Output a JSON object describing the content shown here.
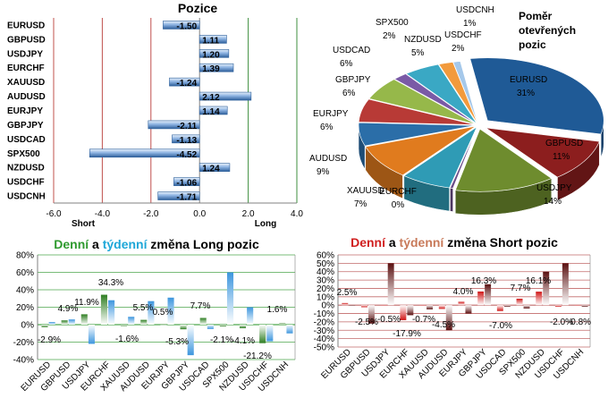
{
  "positions_chart": {
    "type": "bar",
    "orientation": "horizontal",
    "title": "Pozice",
    "categories": [
      "EURUSD",
      "GBPUSD",
      "USDJPY",
      "EURCHF",
      "XAUUSD",
      "AUDUSD",
      "EURJPY",
      "GBPJPY",
      "USDCAD",
      "SPX500",
      "NZDUSD",
      "USDCHF",
      "USDCNH"
    ],
    "values": [
      -1.5,
      1.11,
      1.2,
      1.39,
      -1.24,
      2.12,
      1.14,
      -2.11,
      -1.13,
      -4.52,
      1.24,
      -1.06,
      -1.71
    ],
    "value_labels": [
      "-1.50",
      "1.11",
      "1.20",
      "1.39",
      "-1.24",
      "2.12",
      "1.14",
      "-2.11",
      "-1.13",
      "-4.52",
      "1.24",
      "-1.06",
      "-1.71"
    ],
    "xlim": [
      -6,
      4
    ],
    "ticks": [
      -6,
      -4,
      -2,
      0,
      2,
      4
    ],
    "tick_labels": [
      "-6.0",
      "-4.0",
      "-2.0",
      "0.0",
      "2.0",
      "4.0"
    ],
    "short_label": "Short",
    "long_label": "Long",
    "bar_color": "#4f81bd"
  },
  "pie_chart": {
    "type": "pie",
    "title": "Poměr otevřených pozic",
    "title_lines": [
      "Poměr",
      "otevřených",
      "pozic"
    ],
    "slices": [
      {
        "label": "EURUSD",
        "value": 31,
        "pct": "31%",
        "color": "#1f5a96"
      },
      {
        "label": "GBPUSD",
        "value": 11,
        "pct": "11%",
        "color": "#8c1e1e"
      },
      {
        "label": "USDJPY",
        "value": 14,
        "pct": "14%",
        "color": "#6e8c2e"
      },
      {
        "label": "EURCHF",
        "value": 0.4,
        "pct": "0%",
        "color": "#6b4d8a"
      },
      {
        "label": "XAUUSD",
        "value": 7,
        "pct": "7%",
        "color": "#2f9bb5"
      },
      {
        "label": "AUDUSD",
        "value": 9,
        "pct": "9%",
        "color": "#e07b1e"
      },
      {
        "label": "EURJPY",
        "value": 6,
        "pct": "6%",
        "color": "#2b6ea8"
      },
      {
        "label": "GBPJPY",
        "value": 6,
        "pct": "6%",
        "color": "#b83a36"
      },
      {
        "label": "USDCAD",
        "value": 6,
        "pct": "6%",
        "color": "#96b84a"
      },
      {
        "label": "SPX500",
        "value": 2,
        "pct": "2%",
        "color": "#7a5aa6"
      },
      {
        "label": "NZDUSD",
        "value": 5,
        "pct": "5%",
        "color": "#3aa8c4"
      },
      {
        "label": "USDCHF",
        "value": 2,
        "pct": "2%",
        "color": "#f29a3c"
      },
      {
        "label": "USDCNH",
        "value": 1,
        "pct": "1%",
        "color": "#a5c8ea"
      }
    ]
  },
  "long_change_chart": {
    "type": "bar",
    "title_parts": [
      "Denní",
      " a ",
      "týdenní",
      " změna Long pozic"
    ],
    "title_colors": [
      "#2e9a2e",
      "#000000",
      "#1ea7d8",
      "#000000"
    ],
    "categories": [
      "EURUSD",
      "GBPUSD",
      "USDJPY",
      "EURCHF",
      "XAUUSD",
      "AUDUSD",
      "EURJPY",
      "GBPJPY",
      "USDCAD",
      "SPX500",
      "NZDUSD",
      "USDCHF",
      "USDCNH"
    ],
    "series": [
      {
        "name": "Denní",
        "values": [
          -2.9,
          4.9,
          11.9,
          34.3,
          -1.6,
          5.5,
          0.5,
          -5.3,
          7.7,
          -2.1,
          -4.1,
          -21.2,
          1.6
        ]
      },
      {
        "name": "týdenní",
        "values": [
          3,
          6,
          -22,
          28,
          9,
          27,
          31,
          -35,
          -5,
          60,
          20,
          -19,
          -10
        ]
      }
    ],
    "data_labels": [
      "-2.9%",
      "4.9%",
      "11.9%",
      "34.3%",
      "-1.6%",
      "5.5%",
      "0.5%",
      "-5.3%",
      "7.7%",
      "-2.1%",
      "-4.1%",
      "-21.2%",
      "1.6%"
    ],
    "ylim": [
      -40,
      80
    ],
    "ticks": [
      -40,
      -20,
      0,
      20,
      40,
      60,
      80
    ],
    "tick_labels": [
      "-40%",
      "-20%",
      "0%",
      "20%",
      "40%",
      "60%",
      "80%"
    ],
    "daily_color": "#3a8f2a",
    "weekly_color": "#4a9fe0"
  },
  "short_change_chart": {
    "type": "bar",
    "title_parts": [
      "Denní",
      " a ",
      "týdenní",
      " změna Short pozic"
    ],
    "title_colors": [
      "#d01f1f",
      "#000000",
      "#c87a5a",
      "#000000"
    ],
    "categories": [
      "EURUSD",
      "GBPUSD",
      "USDJPY",
      "EURCHF",
      "XAUUSD",
      "AUDUSD",
      "EURJPY",
      "GBPJPY",
      "USDCAD",
      "SPX500",
      "NZDUSD",
      "USDCHF",
      "USDCNH"
    ],
    "series": [
      {
        "name": "Denní",
        "values": [
          2.5,
          -2.5,
          -0.5,
          -17.9,
          -0.7,
          -4.5,
          4.0,
          16.3,
          -7.0,
          7.7,
          16.1,
          -2.0,
          -0.8
        ]
      },
      {
        "name": "týdenní",
        "values": [
          0,
          -22,
          50,
          -12,
          -5,
          -30,
          -10,
          25,
          -2,
          -4,
          40,
          50,
          -2
        ]
      }
    ],
    "data_labels": [
      "2.5%",
      "-2.5%",
      "-0.5%",
      "-17.9%",
      "-0.7%",
      "-4.5%",
      "4.0%",
      "16.3%",
      "-7.0%",
      "7.7%",
      "16.1%",
      "-2.0%",
      "-0.8%"
    ],
    "ylim": [
      -50,
      60
    ],
    "ticks": [
      -50,
      -40,
      -30,
      -20,
      -10,
      0,
      10,
      20,
      30,
      40,
      50,
      60
    ],
    "tick_labels": [
      "-50%",
      "-40%",
      "-30%",
      "-20%",
      "-10%",
      "0%",
      "10%",
      "20%",
      "30%",
      "40%",
      "50%",
      "60%"
    ],
    "daily_color": "#cc1a1a",
    "weekly_color": "#6b1515"
  }
}
